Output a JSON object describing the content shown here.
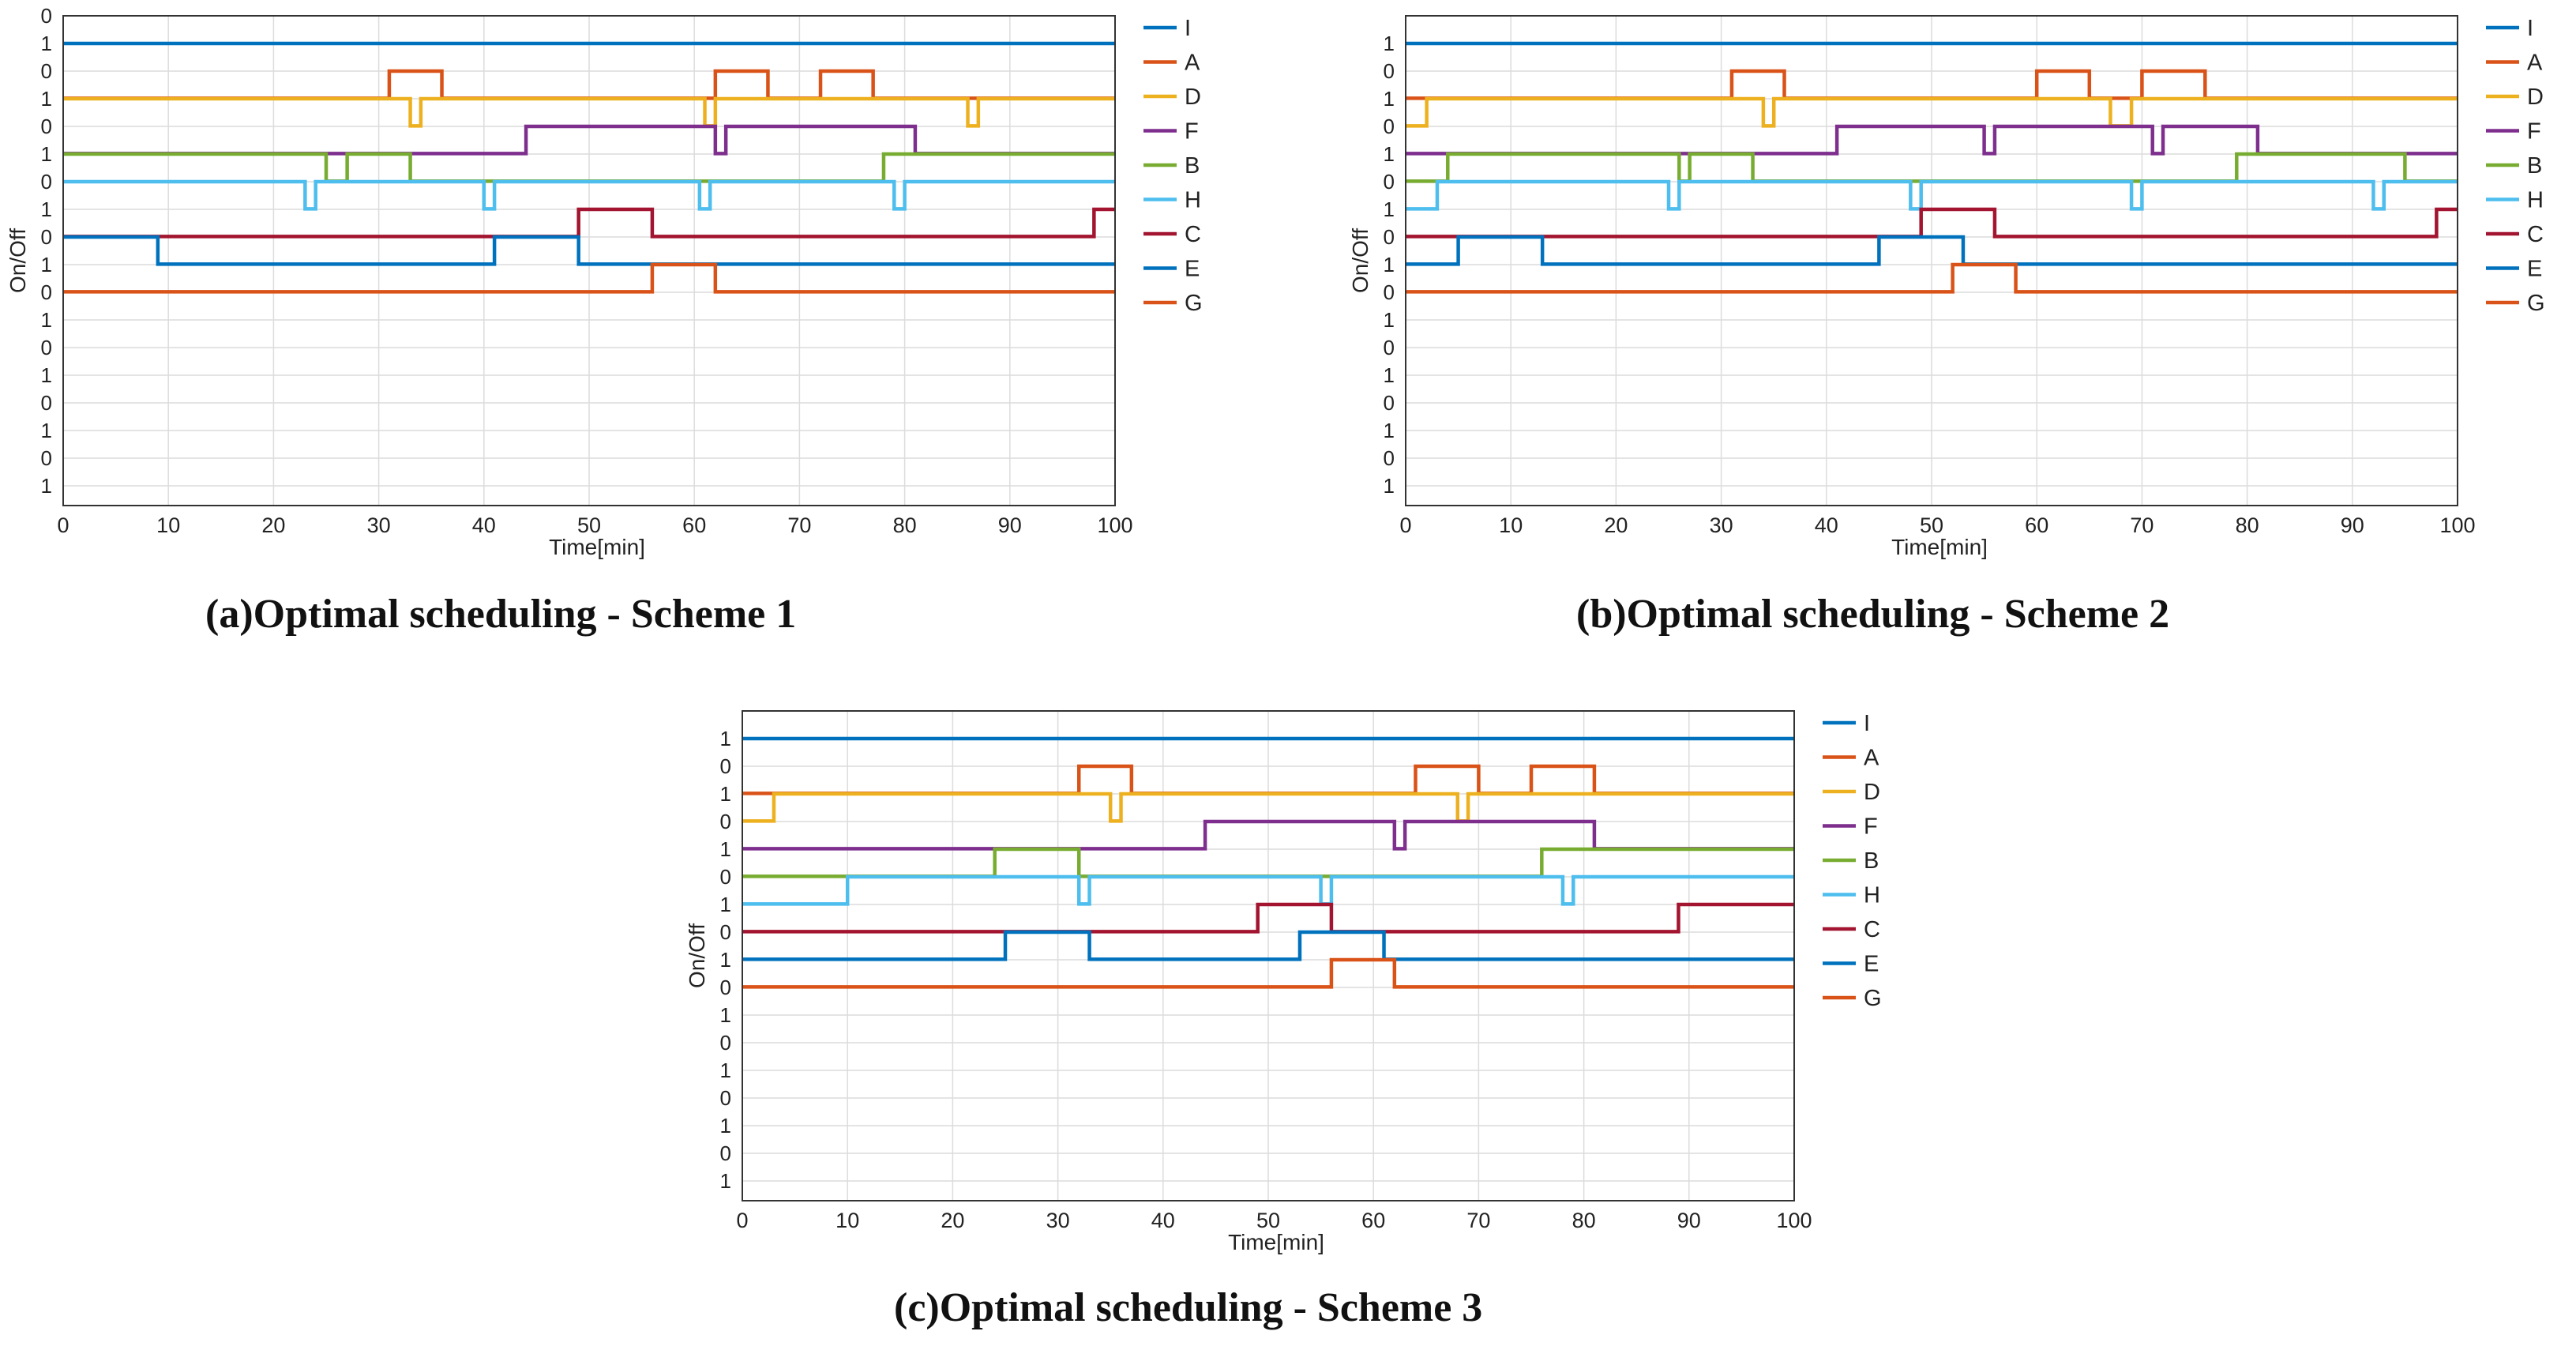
{
  "chart_data": [
    {
      "type": "line",
      "caption": "(a)Optimal scheduling - Scheme 1",
      "xlabel": "Time[min]",
      "ylabel": "On/Off",
      "xlim": [
        0,
        100
      ],
      "xticks": [
        0,
        10,
        20,
        30,
        40,
        50,
        60,
        70,
        80,
        90,
        100
      ],
      "top_label": "0",
      "legend_position": "right",
      "series": [
        {
          "name": "I",
          "color": "#0072BD",
          "on": [
            [
              0,
              100
            ]
          ]
        },
        {
          "name": "A",
          "color": "#D95319",
          "on": [
            [
              31,
              36
            ],
            [
              62,
              67
            ],
            [
              72,
              77
            ]
          ]
        },
        {
          "name": "D",
          "color": "#EDB120",
          "on": [
            [
              0,
              33
            ],
            [
              34,
              61
            ],
            [
              62,
              86
            ],
            [
              87,
              100
            ]
          ]
        },
        {
          "name": "F",
          "color": "#7E2F8E",
          "on": [
            [
              44,
              62
            ],
            [
              63,
              81
            ]
          ]
        },
        {
          "name": "B",
          "color": "#77AC30",
          "on": [
            [
              0,
              25
            ],
            [
              27,
              33
            ],
            [
              78,
              100
            ]
          ]
        },
        {
          "name": "H",
          "color": "#4DBEEE",
          "on": [
            [
              0,
              23
            ],
            [
              24,
              40
            ],
            [
              41,
              60.5
            ],
            [
              61.5,
              79
            ],
            [
              80,
              100
            ]
          ]
        },
        {
          "name": "C",
          "color": "#A2142F",
          "on": [
            [
              49,
              56
            ],
            [
              98,
              100
            ]
          ]
        },
        {
          "name": "E",
          "color": "#0072BD",
          "on": [
            [
              0,
              9
            ],
            [
              41,
              49
            ]
          ]
        },
        {
          "name": "G",
          "color": "#D95319",
          "on": [
            [
              56,
              62
            ]
          ]
        }
      ]
    },
    {
      "type": "line",
      "caption": "(b)Optimal scheduling - Scheme 2",
      "xlabel": "Time[min]",
      "ylabel": "On/Off",
      "xlim": [
        0,
        100
      ],
      "xticks": [
        0,
        10,
        20,
        30,
        40,
        50,
        60,
        70,
        80,
        90,
        100
      ],
      "top_label": "",
      "legend_position": "right",
      "series": [
        {
          "name": "I",
          "color": "#0072BD",
          "on": [
            [
              0,
              100
            ]
          ]
        },
        {
          "name": "A",
          "color": "#D95319",
          "on": [
            [
              31,
              36
            ],
            [
              60,
              65
            ],
            [
              70,
              76
            ]
          ]
        },
        {
          "name": "D",
          "color": "#EDB120",
          "on": [
            [
              2,
              34
            ],
            [
              35,
              67
            ],
            [
              69,
              100
            ]
          ]
        },
        {
          "name": "F",
          "color": "#7E2F8E",
          "on": [
            [
              41,
              55
            ],
            [
              56,
              71
            ],
            [
              72,
              81
            ]
          ]
        },
        {
          "name": "B",
          "color": "#77AC30",
          "on": [
            [
              4,
              26
            ],
            [
              27,
              33
            ],
            [
              79,
              95
            ]
          ]
        },
        {
          "name": "H",
          "color": "#4DBEEE",
          "on": [
            [
              3,
              25
            ],
            [
              26,
              48
            ],
            [
              49,
              69
            ],
            [
              70,
              92
            ],
            [
              93,
              100
            ]
          ]
        },
        {
          "name": "C",
          "color": "#A2142F",
          "on": [
            [
              49,
              56
            ],
            [
              98,
              100
            ]
          ]
        },
        {
          "name": "E",
          "color": "#0072BD",
          "on": [
            [
              5,
              13
            ],
            [
              45,
              53
            ]
          ]
        },
        {
          "name": "G",
          "color": "#D95319",
          "on": [
            [
              52,
              58
            ]
          ]
        }
      ]
    },
    {
      "type": "line",
      "caption": "(c)Optimal scheduling - Scheme 3",
      "xlabel": "Time[min]",
      "ylabel": "On/Off",
      "xlim": [
        0,
        100
      ],
      "xticks": [
        0,
        10,
        20,
        30,
        40,
        50,
        60,
        70,
        80,
        90,
        100
      ],
      "top_label": "",
      "legend_position": "right",
      "series": [
        {
          "name": "I",
          "color": "#0072BD",
          "on": [
            [
              0,
              100
            ]
          ]
        },
        {
          "name": "A",
          "color": "#D95319",
          "on": [
            [
              32,
              37
            ],
            [
              64,
              70
            ],
            [
              75,
              81
            ]
          ]
        },
        {
          "name": "D",
          "color": "#EDB120",
          "on": [
            [
              3,
              35
            ],
            [
              36,
              68
            ],
            [
              69,
              100
            ]
          ]
        },
        {
          "name": "F",
          "color": "#7E2F8E",
          "on": [
            [
              44,
              62
            ],
            [
              63,
              81
            ]
          ]
        },
        {
          "name": "B",
          "color": "#77AC30",
          "on": [
            [
              24,
              32
            ],
            [
              76,
              100
            ]
          ]
        },
        {
          "name": "H",
          "color": "#4DBEEE",
          "on": [
            [
              10,
              32
            ],
            [
              33,
              55
            ],
            [
              56,
              78
            ],
            [
              79,
              100
            ]
          ]
        },
        {
          "name": "C",
          "color": "#A2142F",
          "on": [
            [
              49,
              56
            ],
            [
              89,
              100
            ]
          ]
        },
        {
          "name": "E",
          "color": "#0072BD",
          "on": [
            [
              25,
              33
            ],
            [
              53,
              61
            ]
          ]
        },
        {
          "name": "G",
          "color": "#D95319",
          "on": [
            [
              56,
              62
            ]
          ]
        }
      ]
    }
  ]
}
